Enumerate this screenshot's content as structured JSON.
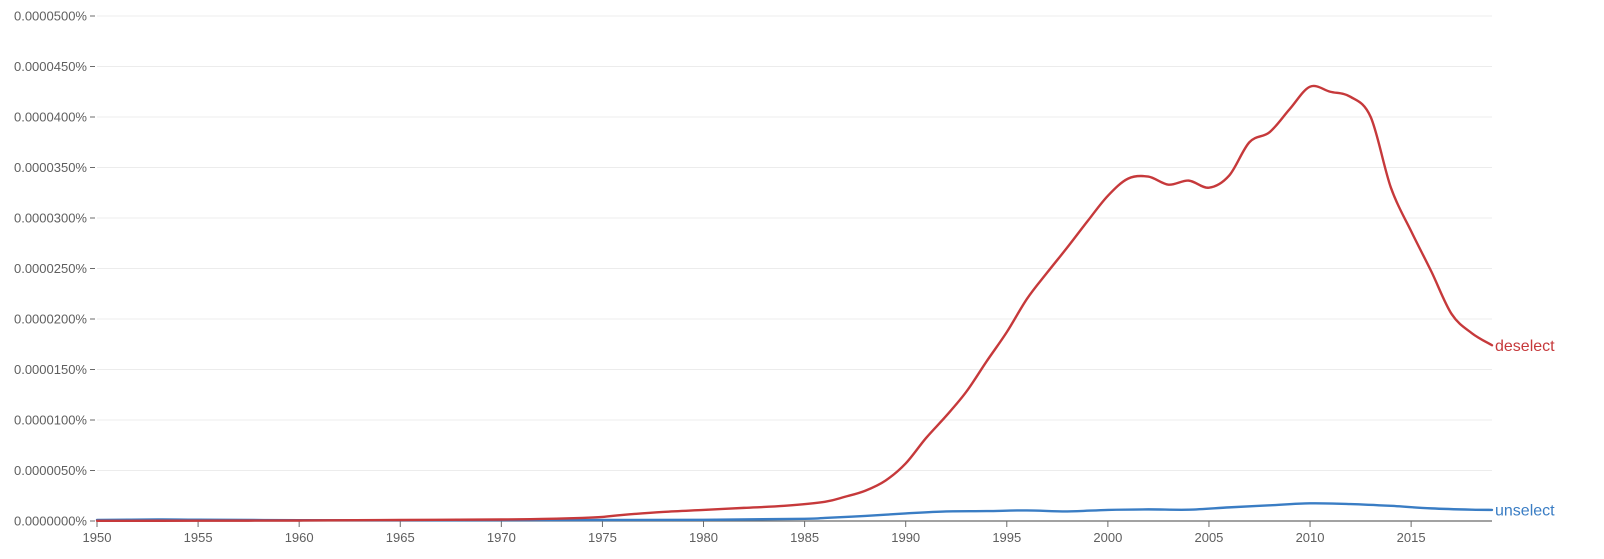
{
  "chart_data": {
    "type": "line",
    "title": "",
    "xlabel": "",
    "ylabel": "",
    "xlim": [
      1950,
      2019
    ],
    "ylim": [
      0,
      5e-07
    ],
    "x_ticks": [
      1950,
      1955,
      1960,
      1965,
      1970,
      1975,
      1980,
      1985,
      1990,
      1995,
      2000,
      2005,
      2010,
      2015
    ],
    "x_tick_labels": [
      "1950",
      "1955",
      "1960",
      "1965",
      "1970",
      "1975",
      "1980",
      "1985",
      "1990",
      "1995",
      "2000",
      "2005",
      "2010",
      "2015"
    ],
    "y_ticks": [
      0,
      5e-08,
      1e-07,
      1.5e-07,
      2e-07,
      2.5e-07,
      3e-07,
      3.5e-07,
      4e-07,
      4.5e-07,
      5e-07
    ],
    "y_tick_labels": [
      "0.0000000%",
      "0.0000050%",
      "0.0000100%",
      "0.0000150%",
      "0.0000200%",
      "0.0000250%",
      "0.0000300%",
      "0.0000350%",
      "0.0000400%",
      "0.0000450%",
      "0.0000500%"
    ],
    "grid": true,
    "legend": "inline labels at line ends (right)",
    "series": [
      {
        "name": "deselect",
        "color": "#c6393b",
        "x": [
          1950,
          1955,
          1960,
          1965,
          1970,
          1972,
          1974,
          1975,
          1976,
          1978,
          1980,
          1982,
          1984,
          1986,
          1987,
          1988,
          1989,
          1990,
          1991,
          1992,
          1993,
          1994,
          1995,
          1996,
          1997,
          1998,
          1999,
          2000,
          2001,
          2002,
          2003,
          2004,
          2005,
          2006,
          2007,
          2008,
          2009,
          2010,
          2011,
          2012,
          2013,
          2014,
          2015,
          2016,
          2017,
          2018,
          2019
        ],
        "values": [
          2e-10,
          3e-10,
          5e-10,
          1e-09,
          1.5e-09,
          2e-09,
          3e-09,
          4e-09,
          6e-09,
          9e-09,
          1.1e-08,
          1.3e-08,
          1.5e-08,
          1.9e-08,
          2.4e-08,
          3e-08,
          4e-08,
          5.7e-08,
          8.2e-08,
          1.04e-07,
          1.28e-07,
          1.58e-07,
          1.87e-07,
          2.2e-07,
          2.46e-07,
          2.71e-07,
          2.97e-07,
          3.22e-07,
          3.39e-07,
          3.41e-07,
          3.33e-07,
          3.37e-07,
          3.3e-07,
          3.42e-07,
          3.75e-07,
          3.85e-07,
          4.08e-07,
          4.3e-07,
          4.25e-07,
          4.2e-07,
          4e-07,
          3.3e-07,
          2.87e-07,
          2.47e-07,
          2.05e-07,
          1.86e-07,
          1.74e-07
        ]
      },
      {
        "name": "unselect",
        "color": "#3a7dc4",
        "x": [
          1950,
          1953,
          1955,
          1960,
          1965,
          1970,
          1975,
          1980,
          1985,
          1986,
          1988,
          1990,
          1992,
          1994,
          1996,
          1998,
          2000,
          2002,
          2004,
          2006,
          2008,
          2010,
          2012,
          2014,
          2016,
          2018,
          2019
        ],
        "values": [
          1e-09,
          1.5e-09,
          1.3e-09,
          8e-10,
          7e-10,
          8e-10,
          1e-09,
          1.2e-09,
          2.2e-09,
          3e-09,
          5e-09,
          7.5e-09,
          9.5e-09,
          9.8e-09,
          1.05e-08,
          9.5e-09,
          1.1e-08,
          1.15e-08,
          1.12e-08,
          1.35e-08,
          1.55e-08,
          1.75e-08,
          1.68e-08,
          1.5e-08,
          1.25e-08,
          1.12e-08,
          1.1e-08
        ]
      }
    ]
  }
}
